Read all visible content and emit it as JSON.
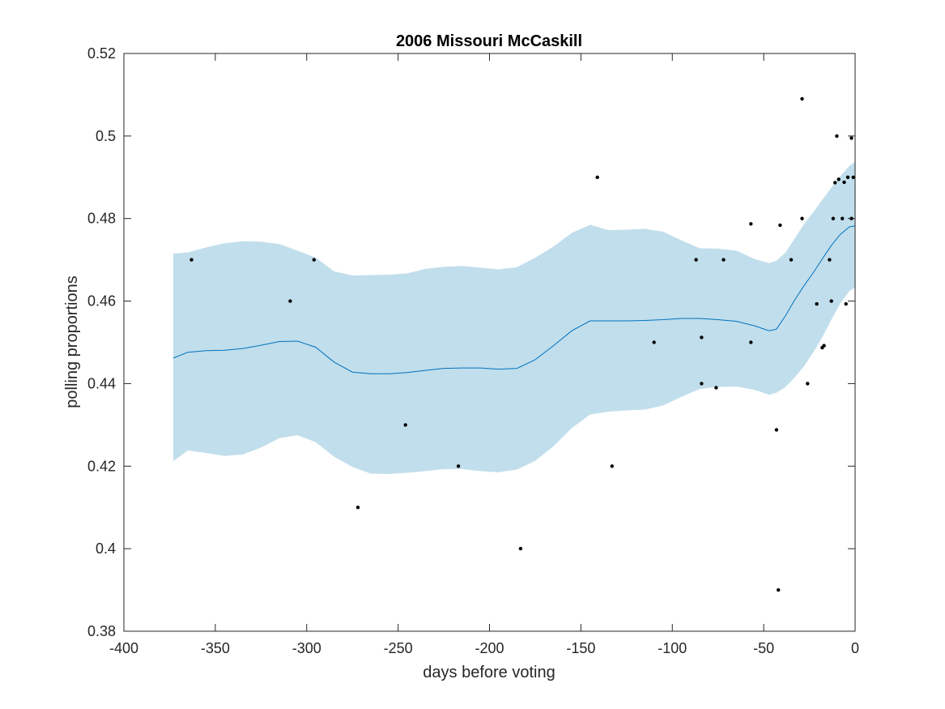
{
  "chart_data": {
    "type": "line",
    "title": "2006 Missouri McCaskill",
    "xlabel": "days before voting",
    "ylabel": "polling proportions",
    "xlim": [
      -400,
      0
    ],
    "ylim": [
      0.38,
      0.52
    ],
    "xticks": [
      -400,
      -350,
      -300,
      -250,
      -200,
      -150,
      -100,
      -50,
      0
    ],
    "xtick_labels": [
      "-400",
      "-350",
      "-300",
      "-250",
      "-200",
      "-150",
      "-100",
      "-50",
      "0"
    ],
    "yticks": [
      0.38,
      0.4,
      0.42,
      0.44,
      0.46,
      0.48,
      0.5,
      0.52
    ],
    "ytick_labels": [
      "0.38",
      "0.4",
      "0.42",
      "0.44",
      "0.46",
      "0.48",
      "0.5",
      "0.52"
    ],
    "grid": false,
    "colors": {
      "band": "#c1deec",
      "mean_line": "#0072bd",
      "points": "#000000",
      "axes": "#262626"
    },
    "series": [
      {
        "kind": "band",
        "x": [
          -373,
          -365,
          -355,
          -345,
          -335,
          -325,
          -315,
          -305,
          -295,
          -285,
          -275,
          -265,
          -255,
          -245,
          -235,
          -225,
          -215,
          -205,
          -195,
          -185,
          -175,
          -165,
          -155,
          -145,
          -135,
          -125,
          -115,
          -105,
          -95,
          -85,
          -75,
          -65,
          -55,
          -47,
          -43,
          -38,
          -33,
          -28,
          -23,
          -18,
          -13,
          -8,
          -3,
          0
        ],
        "upper": [
          0.4715,
          0.4718,
          0.473,
          0.474,
          0.4745,
          0.4744,
          0.4738,
          0.4722,
          0.4705,
          0.4672,
          0.4662,
          0.4663,
          0.4664,
          0.4667,
          0.4678,
          0.4683,
          0.4685,
          0.4681,
          0.4677,
          0.4682,
          0.4705,
          0.4732,
          0.4765,
          0.4785,
          0.4772,
          0.4773,
          0.4775,
          0.4768,
          0.4747,
          0.4728,
          0.4727,
          0.4722,
          0.4702,
          0.4692,
          0.4698,
          0.4718,
          0.4752,
          0.4786,
          0.4815,
          0.4845,
          0.4875,
          0.4903,
          0.4928,
          0.4938
        ]
      },
      {
        "kind": "band_lower",
        "x": [
          -373,
          -365,
          -355,
          -345,
          -335,
          -325,
          -315,
          -305,
          -295,
          -285,
          -275,
          -265,
          -255,
          -245,
          -235,
          -225,
          -215,
          -205,
          -195,
          -185,
          -175,
          -165,
          -155,
          -145,
          -135,
          -125,
          -115,
          -105,
          -95,
          -85,
          -75,
          -65,
          -55,
          -47,
          -43,
          -38,
          -33,
          -28,
          -23,
          -18,
          -13,
          -8,
          -3,
          0
        ],
        "lower": [
          0.4212,
          0.4238,
          0.4232,
          0.4225,
          0.4228,
          0.4245,
          0.4268,
          0.4275,
          0.4258,
          0.4223,
          0.4198,
          0.4182,
          0.4181,
          0.4184,
          0.4188,
          0.4193,
          0.4193,
          0.4188,
          0.4185,
          0.4192,
          0.4213,
          0.4248,
          0.4292,
          0.4325,
          0.4332,
          0.4335,
          0.4337,
          0.4347,
          0.4368,
          0.4387,
          0.4392,
          0.4393,
          0.4385,
          0.4373,
          0.4378,
          0.4392,
          0.4415,
          0.4442,
          0.4475,
          0.4512,
          0.4555,
          0.4595,
          0.4625,
          0.4632
        ]
      },
      {
        "kind": "line",
        "x": [
          -373,
          -365,
          -355,
          -345,
          -335,
          -325,
          -315,
          -305,
          -295,
          -285,
          -275,
          -265,
          -255,
          -245,
          -235,
          -225,
          -215,
          -205,
          -195,
          -185,
          -175,
          -165,
          -155,
          -145,
          -135,
          -125,
          -115,
          -105,
          -95,
          -85,
          -75,
          -65,
          -55,
          -47,
          -43,
          -38,
          -33,
          -28,
          -23,
          -18,
          -13,
          -8,
          -3,
          0
        ],
        "y": [
          0.4462,
          0.4476,
          0.448,
          0.4481,
          0.4485,
          0.4493,
          0.4502,
          0.4503,
          0.4488,
          0.4452,
          0.4428,
          0.4424,
          0.4424,
          0.4427,
          0.4432,
          0.4437,
          0.4438,
          0.4438,
          0.4435,
          0.4437,
          0.4458,
          0.4492,
          0.4528,
          0.4552,
          0.4552,
          0.4552,
          0.4553,
          0.4555,
          0.4558,
          0.4558,
          0.4555,
          0.4551,
          0.454,
          0.4528,
          0.4532,
          0.4565,
          0.4603,
          0.4637,
          0.4668,
          0.4702,
          0.4735,
          0.4762,
          0.478,
          0.4782
        ]
      },
      {
        "kind": "scatter",
        "points": [
          [
            -363,
            0.47
          ],
          [
            -309,
            0.46
          ],
          [
            -296,
            0.47
          ],
          [
            -272,
            0.41
          ],
          [
            -246,
            0.43
          ],
          [
            -217,
            0.42
          ],
          [
            -183,
            0.4
          ],
          [
            -141,
            0.49
          ],
          [
            -133,
            0.42
          ],
          [
            -110,
            0.45
          ],
          [
            -87,
            0.47
          ],
          [
            -84,
            0.4512
          ],
          [
            -84,
            0.44
          ],
          [
            -76,
            0.439
          ],
          [
            -72,
            0.47
          ],
          [
            -57,
            0.4787
          ],
          [
            -57,
            0.45
          ],
          [
            -43,
            0.4288
          ],
          [
            -42,
            0.39
          ],
          [
            -41,
            0.4784
          ],
          [
            -35,
            0.47
          ],
          [
            -29,
            0.509
          ],
          [
            -29,
            0.48
          ],
          [
            -26,
            0.44
          ],
          [
            -21,
            0.4593
          ],
          [
            -18,
            0.4487
          ],
          [
            -17,
            0.4492
          ],
          [
            -14,
            0.47
          ],
          [
            -13,
            0.46
          ],
          [
            -12,
            0.48
          ],
          [
            -11,
            0.4887
          ],
          [
            -10,
            0.5
          ],
          [
            -9,
            0.4895
          ],
          [
            -7,
            0.48
          ],
          [
            -6,
            0.4888
          ],
          [
            -5,
            0.4593
          ],
          [
            -4,
            0.49
          ],
          [
            -2,
            0.4995
          ],
          [
            -2,
            0.48
          ],
          [
            -1,
            0.49
          ]
        ]
      }
    ]
  }
}
